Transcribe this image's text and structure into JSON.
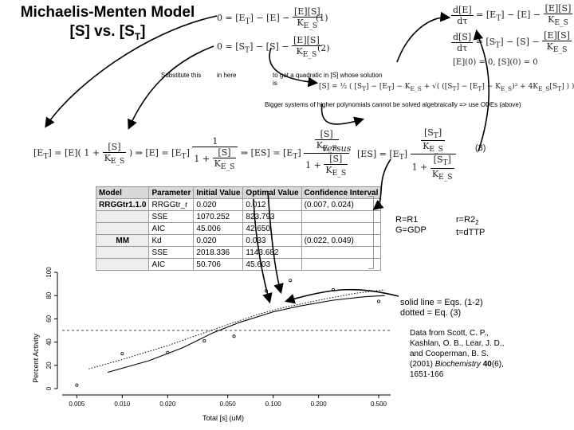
{
  "title_line1": "Michaelis-Menten Model",
  "title_line2": "[S] vs. [S",
  "title_sub": "T",
  "title_end": "]",
  "eq1_tag": "(1)",
  "eq2_tag": "(2)",
  "eq3_tag": "(3)",
  "label_substitute": "Substitute this",
  "label_in_here": "in here",
  "label_quadratic": "to get a quadratic in [S] whose solution is",
  "label_bigger": "Bigger systems of higher polynomials cannot be solved algebraically => use ODEs (above)",
  "label_versus": "versus",
  "ode_initial": "[E](0) = 0,   [S](0) = 0",
  "table": {
    "headers": [
      "Model",
      "Parameter",
      "Initial Value",
      "Optimal Value",
      "Confidence Interval"
    ],
    "rows": [
      [
        "RRGGtr1.1.0",
        "RRGGtr_r",
        "0.020",
        "0.012",
        "(0.007, 0.024)"
      ],
      [
        "",
        "SSE",
        "1070.252",
        "823.793",
        ""
      ],
      [
        "",
        "AIC",
        "45.006",
        "42.650",
        ""
      ],
      [
        "MM",
        "Kd",
        "0.020",
        "0.033",
        "(0.022, 0.049)"
      ],
      [
        "",
        "SSE",
        "2018.336",
        "1143.682",
        ""
      ],
      [
        "",
        "AIC",
        "50.706",
        "45.603",
        ""
      ]
    ]
  },
  "legend_left": [
    "R=R1",
    "G=GDP"
  ],
  "legend_right_r": "r=R2",
  "legend_right_sub": "2",
  "legend_right_t": "t=dTTP",
  "note_solid": "solid line = Eqs. (1-2)",
  "note_dotted": "dotted  = Eq. (3)",
  "cite_text": "Data from Scott, C. P., Kashlan, O. B., Lear, J. D., and Cooperman, B. S. (2001)",
  "cite_journal": "Biochemistry",
  "cite_volume": "40",
  "cite_pages": "(6), 1651-166",
  "chart_data": {
    "type": "scatter",
    "xlabel": "Total [s] (uM)",
    "ylabel": "Percent Activity",
    "xscale": "log",
    "xlim": [
      0.004,
      0.6
    ],
    "ylim": [
      0,
      100
    ],
    "xticks": [
      "0.005",
      "0.010",
      "0.020",
      "0.050",
      "0.100",
      "0.200",
      "0.500"
    ],
    "yticks": [
      "0",
      "20",
      "40",
      "60",
      "80",
      "100"
    ],
    "points": [
      {
        "x": 0.005,
        "y": 3
      },
      {
        "x": 0.01,
        "y": 30
      },
      {
        "x": 0.02,
        "y": 31
      },
      {
        "x": 0.035,
        "y": 41
      },
      {
        "x": 0.055,
        "y": 45
      },
      {
        "x": 0.09,
        "y": 84
      },
      {
        "x": 0.13,
        "y": 93
      },
      {
        "x": 0.25,
        "y": 85
      },
      {
        "x": 0.5,
        "y": 75
      }
    ],
    "reference_y": 50,
    "series": [
      {
        "style": "solid",
        "x": [
          0.008,
          0.015,
          0.025,
          0.04,
          0.06,
          0.1,
          0.15,
          0.25,
          0.4,
          0.55
        ],
        "y": [
          14,
          24,
          35,
          48,
          57,
          66,
          71,
          76,
          79,
          80
        ]
      },
      {
        "style": "dotted",
        "x": [
          0.006,
          0.01,
          0.02,
          0.03,
          0.05,
          0.08,
          0.12,
          0.2,
          0.35,
          0.55
        ],
        "y": [
          17,
          25,
          37,
          45,
          55,
          64,
          70,
          76,
          82,
          85
        ]
      }
    ]
  }
}
